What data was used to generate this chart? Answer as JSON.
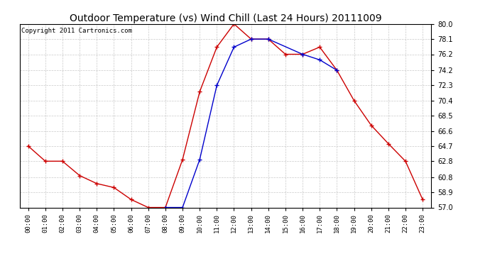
{
  "title": "Outdoor Temperature (vs) Wind Chill (Last 24 Hours) 20111009",
  "copyright": "Copyright 2011 Cartronics.com",
  "hours": [
    "00:00",
    "01:00",
    "02:00",
    "03:00",
    "04:00",
    "05:00",
    "06:00",
    "07:00",
    "08:00",
    "09:00",
    "10:00",
    "11:00",
    "12:00",
    "13:00",
    "14:00",
    "15:00",
    "16:00",
    "17:00",
    "18:00",
    "19:00",
    "20:00",
    "21:00",
    "22:00",
    "23:00"
  ],
  "temp": [
    64.7,
    62.8,
    62.8,
    61.0,
    60.0,
    59.5,
    58.0,
    57.0,
    57.0,
    63.0,
    71.5,
    77.1,
    80.0,
    78.1,
    78.1,
    76.2,
    76.2,
    77.1,
    74.2,
    70.4,
    67.3,
    65.0,
    62.8,
    58.0
  ],
  "wind_chill": [
    null,
    null,
    null,
    null,
    null,
    null,
    null,
    null,
    57.0,
    57.0,
    63.0,
    72.3,
    77.1,
    78.1,
    78.1,
    null,
    76.2,
    75.5,
    74.2,
    null,
    null,
    null,
    null,
    null
  ],
  "temp_color": "#cc0000",
  "wind_chill_color": "#0000cc",
  "ylim": [
    57.0,
    80.0
  ],
  "yticks": [
    57.0,
    58.9,
    60.8,
    62.8,
    64.7,
    66.6,
    68.5,
    70.4,
    72.3,
    74.2,
    76.2,
    78.1,
    80.0
  ],
  "background_color": "#ffffff",
  "grid_color": "#bbbbbb",
  "title_fontsize": 10,
  "copyright_fontsize": 6.5
}
